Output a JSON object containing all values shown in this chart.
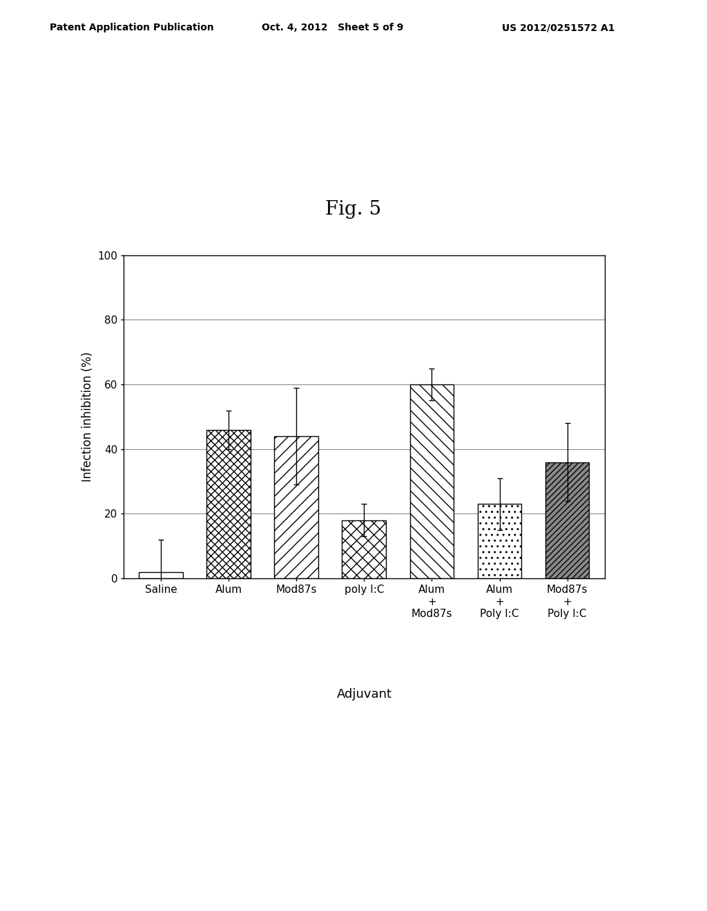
{
  "fig_title": "Fig. 5",
  "patent_left": "Patent Application Publication",
  "patent_center": "Oct. 4, 2012   Sheet 5 of 9",
  "patent_right": "US 2012/0251572 A1",
  "categories": [
    "Saline",
    "Alum",
    "Mod87s",
    "poly I:C",
    "Alum\n+\nMod87s",
    "Alum\n+\nPoly I:C",
    "Mod87s\n+\nPoly I:C"
  ],
  "values": [
    2.0,
    46.0,
    44.0,
    18.0,
    60.0,
    23.0,
    36.0
  ],
  "errors": [
    10.0,
    6.0,
    15.0,
    5.0,
    5.0,
    8.0,
    12.0
  ],
  "ylabel": "Infection inhibition (%)",
  "xlabel": "Adjuvant",
  "ylim": [
    0,
    100
  ],
  "yticks": [
    0,
    20,
    40,
    60,
    80,
    100
  ],
  "bar_color": "#ffffff",
  "bar_edgecolor": "#000000",
  "background_color": "#ffffff",
  "title_fontsize": 20,
  "axis_fontsize": 12,
  "tick_fontsize": 11,
  "patent_fontsize": 10
}
